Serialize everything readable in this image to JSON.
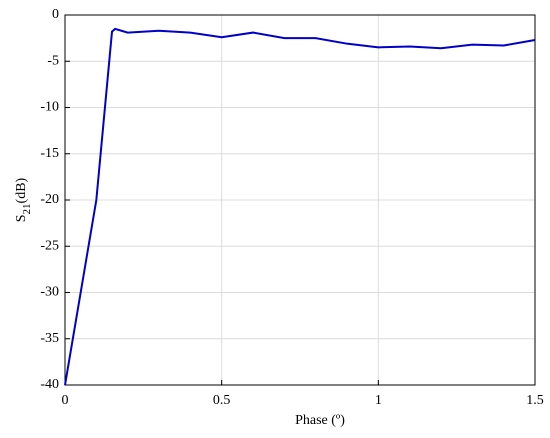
{
  "chart_data": {
    "type": "line",
    "xlabel": "Phase (º)",
    "ylabel": {
      "main": "S",
      "sub": "21",
      "unit": "(dB)"
    },
    "x": [
      0,
      0.1,
      0.15,
      0.16,
      0.2,
      0.3,
      0.4,
      0.5,
      0.6,
      0.7,
      0.8,
      0.9,
      1.0,
      1.1,
      1.2,
      1.3,
      1.4,
      1.5
    ],
    "series": [
      {
        "color": "#0000c8",
        "values": [
          -40,
          -20,
          -1.8,
          -1.5,
          -1.9,
          -1.7,
          -1.9,
          -2.4,
          -1.9,
          -2.5,
          -2.5,
          -3.1,
          -3.5,
          -3.4,
          -3.6,
          -3.2,
          -3.3,
          -2.7
        ]
      }
    ],
    "xlim": [
      0,
      1.5
    ],
    "ylim": [
      -40,
      0
    ],
    "xticks": [
      0,
      0.5,
      1,
      1.5
    ],
    "yticks": [
      -40,
      -35,
      -30,
      -25,
      -20,
      -15,
      -10,
      -5,
      0
    ],
    "grid": true
  }
}
